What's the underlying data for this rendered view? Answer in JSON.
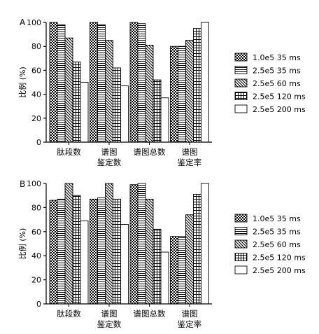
{
  "chart_data": [
    {
      "type": "bar",
      "panel_label": "A",
      "ylabel": "比例 (%)",
      "ylim": [
        0,
        100
      ],
      "yticks": [
        0,
        20,
        40,
        60,
        80,
        100
      ],
      "grid": false,
      "legend_position": "right",
      "categories": [
        "肽段数",
        "谱图\n鉴定数",
        "谱图总数",
        "谱图\n鉴定率"
      ],
      "series": [
        {
          "name": "1.0e5 35 ms",
          "pattern": "checker",
          "values": [
            100,
            100,
            100,
            80
          ]
        },
        {
          "name": "2.5e5 35 ms",
          "pattern": "hlines",
          "values": [
            98,
            98,
            99,
            80
          ]
        },
        {
          "name": "2.5e5 60 ms",
          "pattern": "diagonal",
          "values": [
            87,
            85,
            81,
            85
          ]
        },
        {
          "name": "2.5e5 120 ms",
          "pattern": "grid",
          "values": [
            67,
            62,
            52,
            95
          ]
        },
        {
          "name": "2.5e5 200 ms",
          "pattern": "white",
          "values": [
            50,
            47,
            37,
            100
          ]
        }
      ]
    },
    {
      "type": "bar",
      "panel_label": "B",
      "ylabel": "比例 (%)",
      "ylim": [
        0,
        100
      ],
      "yticks": [
        0,
        20,
        40,
        60,
        80,
        100
      ],
      "grid": false,
      "legend_position": "right",
      "categories": [
        "肽段数",
        "谱图\n鉴定数",
        "谱图总数",
        "谱图\n鉴定率"
      ],
      "series": [
        {
          "name": "1.0e5 35 ms",
          "pattern": "checker",
          "values": [
            86,
            87,
            99,
            56
          ]
        },
        {
          "name": "2.5e5 35 ms",
          "pattern": "hlines",
          "values": [
            87,
            88,
            100,
            56
          ]
        },
        {
          "name": "2.5e5 60 ms",
          "pattern": "diagonal",
          "values": [
            100,
            100,
            87,
            74
          ]
        },
        {
          "name": "2.5e5 120 ms",
          "pattern": "grid",
          "values": [
            90,
            87,
            62,
            91
          ]
        },
        {
          "name": "2.5e5 200 ms",
          "pattern": "white",
          "values": [
            69,
            66,
            43,
            100
          ]
        }
      ]
    }
  ]
}
